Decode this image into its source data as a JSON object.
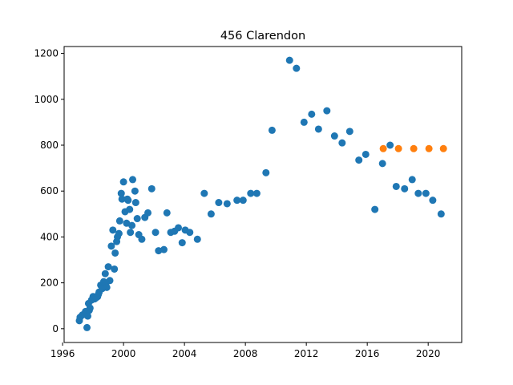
{
  "chart_data": {
    "type": "scatter",
    "title": "456 Clarendon",
    "xlabel": "",
    "ylabel": "",
    "xlim": [
      1996.1,
      2022.2
    ],
    "ylim": [
      -60,
      1230
    ],
    "xticks": [
      1996,
      2000,
      2004,
      2008,
      2012,
      2016,
      2020
    ],
    "xtick_labels": [
      "1996",
      "2000",
      "2004",
      "2008",
      "2012",
      "2016",
      "2020"
    ],
    "yticks": [
      0,
      200,
      400,
      600,
      800,
      1000,
      1200
    ],
    "ytick_labels": [
      "0",
      "200",
      "400",
      "600",
      "800",
      "1000",
      "1200"
    ],
    "grid": false,
    "series": [
      {
        "color": "#1f77b4",
        "points": [
          [
            1997.1,
            35
          ],
          [
            1997.15,
            50
          ],
          [
            1997.3,
            60
          ],
          [
            1997.5,
            75
          ],
          [
            1997.6,
            5
          ],
          [
            1997.65,
            55
          ],
          [
            1997.7,
            110
          ],
          [
            1997.75,
            80
          ],
          [
            1997.8,
            90
          ],
          [
            1997.9,
            125
          ],
          [
            1998.0,
            140
          ],
          [
            1998.1,
            130
          ],
          [
            1998.2,
            135
          ],
          [
            1998.3,
            140
          ],
          [
            1998.35,
            150
          ],
          [
            1998.4,
            160
          ],
          [
            1998.5,
            190
          ],
          [
            1998.6,
            175
          ],
          [
            1998.7,
            205
          ],
          [
            1998.8,
            240
          ],
          [
            1998.85,
            200
          ],
          [
            1998.9,
            180
          ],
          [
            1999.0,
            270
          ],
          [
            1999.1,
            210
          ],
          [
            1999.2,
            360
          ],
          [
            1999.3,
            430
          ],
          [
            1999.4,
            260
          ],
          [
            1999.45,
            330
          ],
          [
            1999.55,
            380
          ],
          [
            1999.6,
            400
          ],
          [
            1999.7,
            415
          ],
          [
            1999.75,
            470
          ],
          [
            1999.85,
            590
          ],
          [
            1999.9,
            565
          ],
          [
            2000.0,
            640
          ],
          [
            2000.1,
            510
          ],
          [
            2000.2,
            460
          ],
          [
            2000.25,
            565
          ],
          [
            2000.3,
            560
          ],
          [
            2000.4,
            520
          ],
          [
            2000.45,
            420
          ],
          [
            2000.55,
            450
          ],
          [
            2000.6,
            650
          ],
          [
            2000.75,
            600
          ],
          [
            2000.8,
            550
          ],
          [
            2000.9,
            480
          ],
          [
            2001.0,
            410
          ],
          [
            2001.2,
            390
          ],
          [
            2001.4,
            485
          ],
          [
            2001.6,
            505
          ],
          [
            2001.85,
            610
          ],
          [
            2002.1,
            420
          ],
          [
            2002.3,
            340
          ],
          [
            2002.65,
            345
          ],
          [
            2002.85,
            505
          ],
          [
            2003.1,
            420
          ],
          [
            2003.35,
            425
          ],
          [
            2003.6,
            440
          ],
          [
            2003.85,
            375
          ],
          [
            2004.05,
            430
          ],
          [
            2004.35,
            420
          ],
          [
            2004.85,
            390
          ],
          [
            2005.3,
            590
          ],
          [
            2005.75,
            500
          ],
          [
            2006.25,
            550
          ],
          [
            2006.8,
            545
          ],
          [
            2007.45,
            560
          ],
          [
            2007.85,
            560
          ],
          [
            2008.35,
            590
          ],
          [
            2008.75,
            590
          ],
          [
            2009.35,
            680
          ],
          [
            2009.75,
            865
          ],
          [
            2010.9,
            1170
          ],
          [
            2011.35,
            1135
          ],
          [
            2011.85,
            900
          ],
          [
            2012.35,
            935
          ],
          [
            2012.8,
            870
          ],
          [
            2013.35,
            950
          ],
          [
            2013.85,
            840
          ],
          [
            2014.35,
            810
          ],
          [
            2014.85,
            860
          ],
          [
            2015.45,
            735
          ],
          [
            2015.9,
            760
          ],
          [
            2016.5,
            520
          ],
          [
            2017.0,
            720
          ],
          [
            2017.5,
            800
          ],
          [
            2017.9,
            620
          ],
          [
            2018.45,
            610
          ],
          [
            2018.95,
            650
          ],
          [
            2019.35,
            590
          ],
          [
            2019.85,
            590
          ],
          [
            2020.3,
            560
          ],
          [
            2020.85,
            500
          ]
        ]
      },
      {
        "color": "#ff7f0e",
        "points": [
          [
            2017.05,
            785
          ],
          [
            2018.05,
            785
          ],
          [
            2019.05,
            785
          ],
          [
            2020.05,
            785
          ],
          [
            2021.0,
            785
          ]
        ]
      }
    ]
  }
}
